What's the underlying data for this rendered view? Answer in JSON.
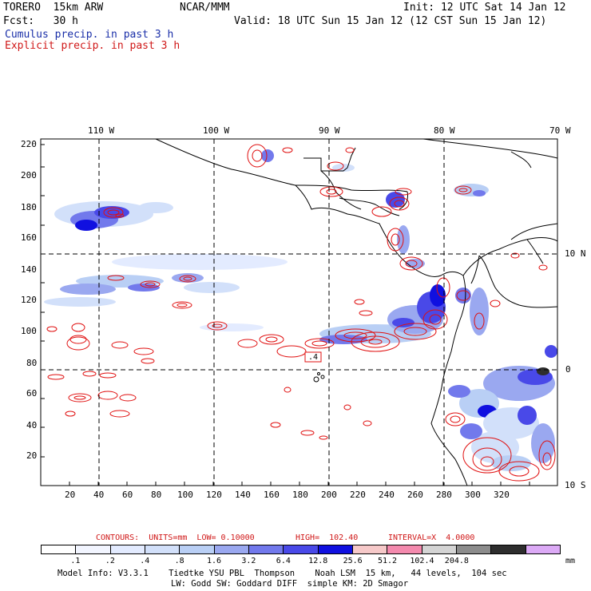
{
  "header": {
    "model": "TORERO  15km ARW",
    "org": "NCAR/MMM",
    "init": "Init: 12 UTC Sat 14 Jan 12",
    "fcst": "Fcst:   30 h",
    "valid": "Valid: 18 UTC Sun 15 Jan 12 (12 CST Sun 15 Jan 12)",
    "cumulus_label": "Cumulus precip. in past 3 h",
    "explicit_label": "Explicit precip. in past 3 h"
  },
  "colors": {
    "cumulus": "#1a2fa8",
    "explicit": "#e01010",
    "land": "#000000",
    "grid": "#000000"
  },
  "map": {
    "lon_labels": [
      "110 W",
      "100 W",
      "90 W",
      "80 W",
      "70 W"
    ],
    "lat_labels": [
      "10 N",
      "0",
      "10 S"
    ],
    "x_ticks": [
      "20",
      "40",
      "60",
      "80",
      "100",
      "120",
      "140",
      "160",
      "180",
      "200",
      "220",
      "240",
      "260",
      "280",
      "300",
      "320"
    ],
    "y_ticks": [
      "220",
      "200",
      "180",
      "160",
      "140",
      "120",
      "100",
      "80",
      "60",
      "40",
      "20"
    ],
    "contour_label": ".4"
  },
  "contours_text": {
    "units": "CONTOURS:  UNITS=mm  LOW= 0.10000",
    "high": "HIGH=  102.40",
    "interval": "INTERVAL=X  4.0000"
  },
  "colorbar": {
    "unit": "mm",
    "bins": [
      {
        "color": "#ffffff"
      },
      {
        "color": "#f2f5ff"
      },
      {
        "color": "#e3ebff"
      },
      {
        "color": "#d2e0fa"
      },
      {
        "color": "#b9cff5"
      },
      {
        "color": "#9aa8f0"
      },
      {
        "color": "#7279ec"
      },
      {
        "color": "#4949e8"
      },
      {
        "color": "#1010e0"
      },
      {
        "color": "#f6c9c9"
      },
      {
        "color": "#f48aae"
      },
      {
        "color": "#d4d4d4"
      },
      {
        "color": "#8c8c8c"
      },
      {
        "color": "#2e2e2e"
      },
      {
        "color": "#dcaaf6"
      }
    ],
    "labels": [
      ".1",
      ".2",
      ".4",
      ".8",
      "1.6",
      "3.2",
      "6.4",
      "12.8",
      "25.6",
      "51.2",
      "102.4",
      "204.8"
    ]
  },
  "footer": {
    "line1": "Model Info: V3.3.1    Tiedtke YSU PBL  Thompson    Noah LSM  15 km,   44 levels,  104 sec",
    "line2": "LW: Godd SW: Goddard DIFF  simple KM: 2D Smagor"
  }
}
